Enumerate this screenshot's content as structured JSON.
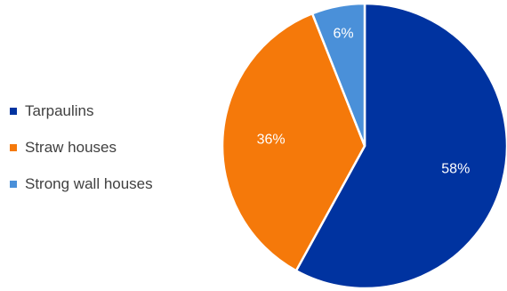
{
  "chart_data": {
    "type": "pie",
    "title": "",
    "legend_position": "left",
    "categories": [
      "Tarpaulins",
      "Straw houses",
      "Strong wall houses"
    ],
    "values": [
      58,
      36,
      6
    ],
    "labels": [
      "58%",
      "36%",
      "6%"
    ],
    "colors": [
      "#0033A0",
      "#F5790A",
      "#4A90D9"
    ],
    "start_angle": "top",
    "direction": "clockwise"
  }
}
